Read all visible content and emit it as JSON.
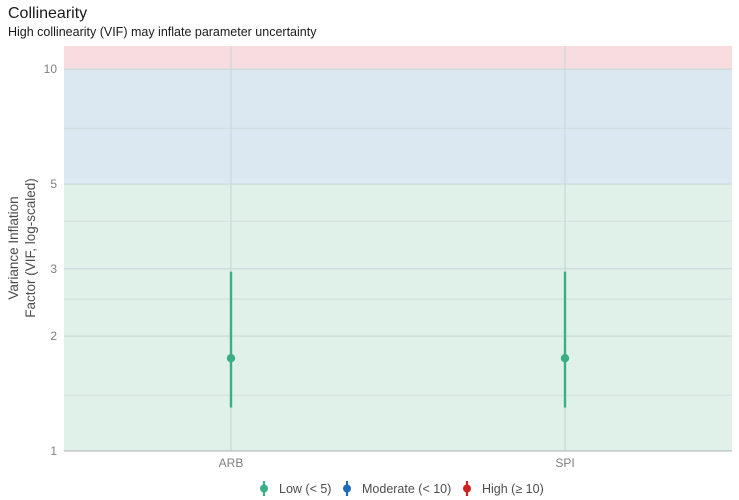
{
  "chart_data": {
    "type": "scatter",
    "title": "Collinearity",
    "subtitle": "High collinearity (VIF) may inflate parameter uncertainty",
    "ylabel": [
      "Variance Inflation",
      "Factor (VIF, log-scaled)"
    ],
    "xlabel": "",
    "y_scale": "log",
    "ylim": [
      1,
      11.5
    ],
    "y_ticks": [
      1,
      2,
      3,
      5,
      10
    ],
    "y_minor_gridlines": [
      1.4,
      2.5,
      4,
      7
    ],
    "grid": true,
    "categories": [
      "ARB",
      "SPI"
    ],
    "bands": [
      {
        "from": 1,
        "to": 5,
        "color": "#e0f1ea"
      },
      {
        "from": 5,
        "to": 10,
        "color": "#dce8f1"
      },
      {
        "from": 10,
        "to": 11.5,
        "color": "#f8dde0"
      }
    ],
    "series": [
      {
        "category": "ARB",
        "vif": 1.75,
        "ci_low": 1.3,
        "ci_high": 2.95,
        "group": "Low (< 5)"
      },
      {
        "category": "SPI",
        "vif": 1.75,
        "ci_low": 1.3,
        "ci_high": 2.95,
        "group": "Low (< 5)"
      }
    ],
    "legend": {
      "position": "bottom",
      "items": [
        {
          "label": "Low (< 5)",
          "color": "#3aaf85"
        },
        {
          "label": "Moderate (< 10)",
          "color": "#1f6bb5"
        },
        {
          "label": "High (≥ 10)",
          "color": "#cd201f"
        }
      ]
    }
  }
}
